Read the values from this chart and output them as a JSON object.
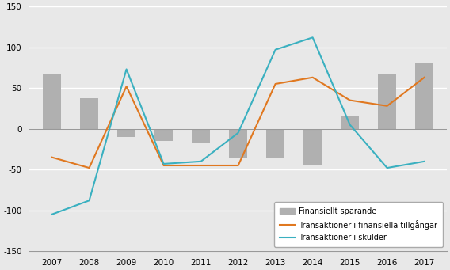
{
  "years": [
    2007,
    2008,
    2009,
    2010,
    2011,
    2012,
    2013,
    2014,
    2015,
    2016,
    2017
  ],
  "finansiellt_sparande": [
    68,
    38,
    -10,
    -15,
    -18,
    -35,
    -35,
    -45,
    15,
    68,
    80
  ],
  "transaktioner_tillgangar": [
    -35,
    -48,
    52,
    -45,
    -45,
    -45,
    55,
    63,
    35,
    28,
    63
  ],
  "transaktioner_skulder": [
    -105,
    -88,
    73,
    -43,
    -40,
    -5,
    97,
    112,
    5,
    -48,
    -40
  ],
  "bar_color": "#b0b0b0",
  "line_color_tillgangar": "#e07820",
  "line_color_skulder": "#3ab0c0",
  "ylim": [
    -150,
    150
  ],
  "yticks": [
    -150,
    -100,
    -50,
    0,
    50,
    100,
    150
  ],
  "background_color": "#e8e8e8",
  "grid_color": "#ffffff",
  "legend_finansiellt": "Finansiellt sparande",
  "legend_tillgangar": "Transaktioner i finansiella tillgångar",
  "legend_skulder": "Transaktioner i skulder"
}
